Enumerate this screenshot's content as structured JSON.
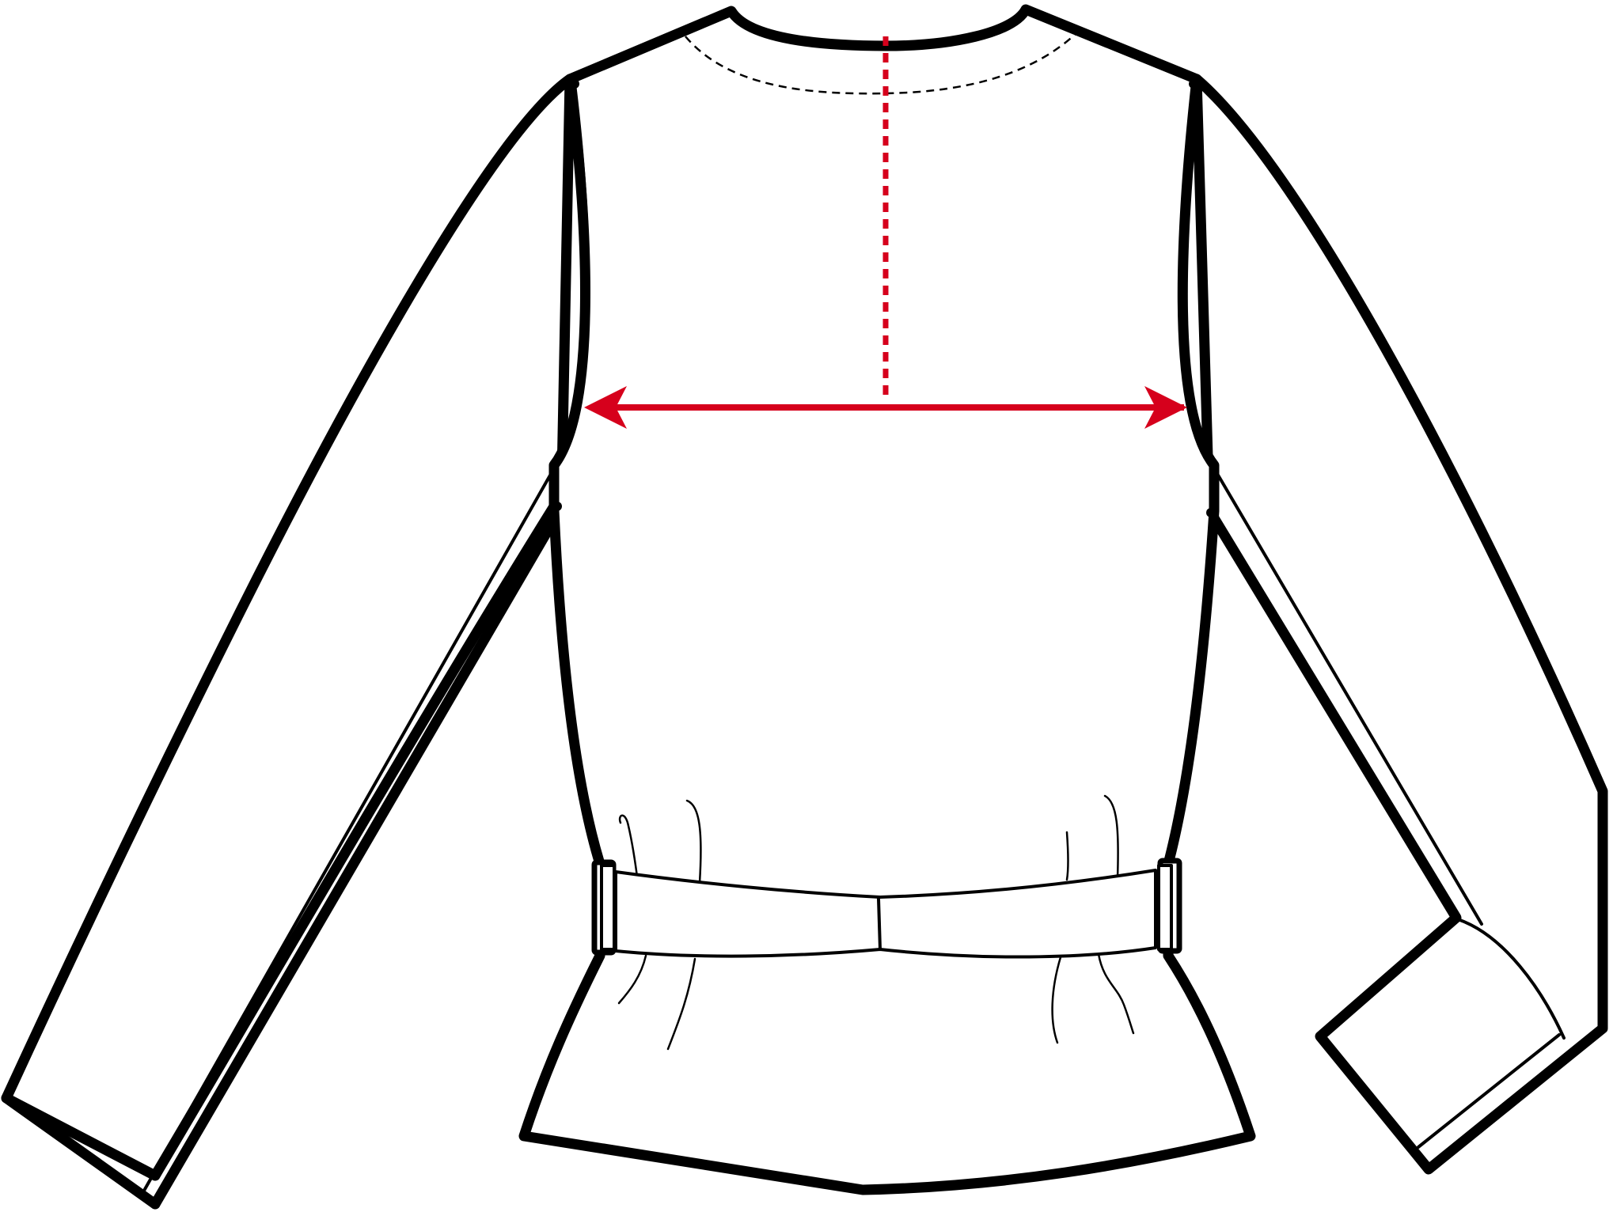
{
  "diagram": {
    "subject": "jacket-back-flat-sketch",
    "colors": {
      "outline": "#000000",
      "background": "#ffffff",
      "measure": "#d6001c"
    },
    "measurement": {
      "kind": "chest-width",
      "guide_style": "dotted",
      "arrow_style": "double-headed"
    }
  }
}
